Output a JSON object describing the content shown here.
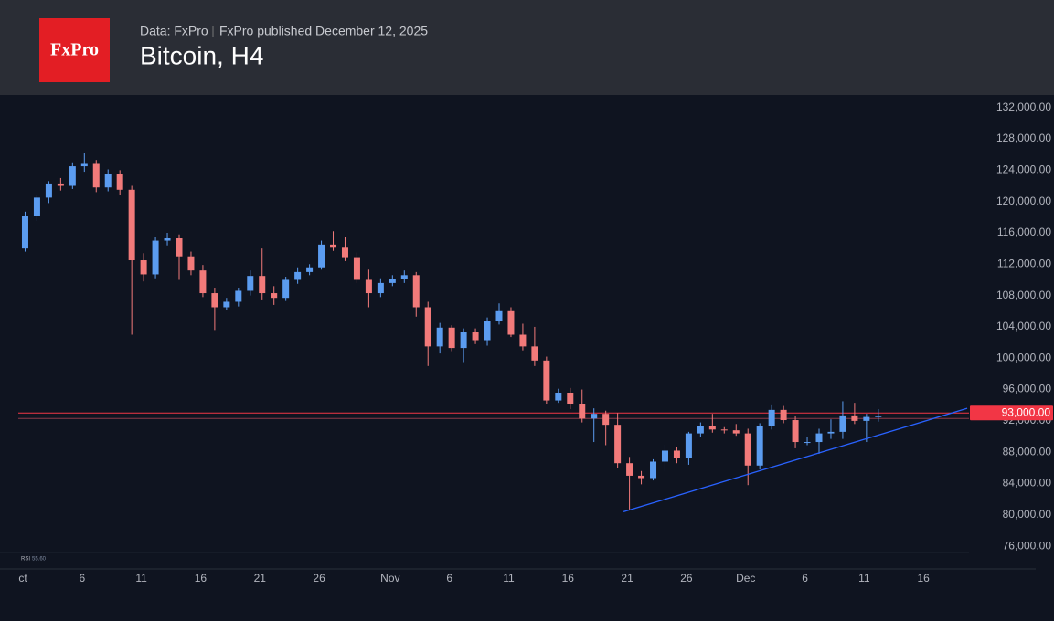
{
  "header": {
    "logo": "FxPro",
    "source": "Data: FxPro",
    "published": "FxPro published December 12, 2025",
    "title": "Bitcoin, H4"
  },
  "chart_data": {
    "type": "candlestick",
    "title": "Bitcoin, H4",
    "x": [
      "2025-10-01",
      "2025-10-02",
      "2025-10-03",
      "2025-10-04",
      "2025-10-05",
      "2025-10-06",
      "2025-10-07",
      "2025-10-08",
      "2025-10-09",
      "2025-10-10",
      "2025-10-11",
      "2025-10-12",
      "2025-10-13",
      "2025-10-14",
      "2025-10-15",
      "2025-10-16",
      "2025-10-17",
      "2025-10-18",
      "2025-10-19",
      "2025-10-20",
      "2025-10-21",
      "2025-10-22",
      "2025-10-23",
      "2025-10-24",
      "2025-10-25",
      "2025-10-26",
      "2025-10-27",
      "2025-10-28",
      "2025-10-29",
      "2025-10-30",
      "2025-10-31",
      "2025-11-01",
      "2025-11-02",
      "2025-11-03",
      "2025-11-04",
      "2025-11-05",
      "2025-11-06",
      "2025-11-07",
      "2025-11-08",
      "2025-11-09",
      "2025-11-10",
      "2025-11-11",
      "2025-11-12",
      "2025-11-13",
      "2025-11-14",
      "2025-11-15",
      "2025-11-16",
      "2025-11-17",
      "2025-11-18",
      "2025-11-19",
      "2025-11-20",
      "2025-11-21",
      "2025-11-22",
      "2025-11-23",
      "2025-11-24",
      "2025-11-25",
      "2025-11-26",
      "2025-11-27",
      "2025-11-28",
      "2025-11-29",
      "2025-11-30",
      "2025-12-01",
      "2025-12-02",
      "2025-12-03",
      "2025-12-04",
      "2025-12-05",
      "2025-12-06",
      "2025-12-07",
      "2025-12-08",
      "2025-12-09",
      "2025-12-10",
      "2025-12-11",
      "2025-12-12"
    ],
    "open": [
      114000,
      118200,
      120500,
      122300,
      122000,
      124500,
      124800,
      121800,
      123500,
      121500,
      112500,
      110700,
      115000,
      115300,
      113000,
      111200,
      108300,
      106500,
      107200,
      108600,
      110500,
      108300,
      107700,
      110000,
      111000,
      111600,
      114500,
      114100,
      112900,
      110000,
      108300,
      109600,
      110100,
      110600,
      106500,
      101500,
      103900,
      101300,
      103400,
      102300,
      104700,
      106000,
      103000,
      101500,
      99700,
      94600,
      95600,
      94200,
      92300,
      92900,
      91500,
      86600,
      85000,
      84700,
      86800,
      88200,
      87300,
      90400,
      91300,
      90900,
      90800,
      90400,
      86300,
      91300,
      93400,
      92100,
      89300,
      89300,
      90400,
      90600,
      92700,
      92000,
      92500
    ],
    "high": [
      118700,
      120800,
      122600,
      123000,
      125000,
      126200,
      125300,
      124100,
      124000,
      122000,
      113400,
      115500,
      116000,
      115800,
      113600,
      111900,
      109000,
      107700,
      109000,
      111200,
      114000,
      109200,
      110400,
      111600,
      112000,
      115000,
      116200,
      115500,
      113500,
      111300,
      110200,
      110600,
      111200,
      111000,
      107200,
      104500,
      104200,
      103800,
      103800,
      105200,
      107000,
      106500,
      104400,
      104000,
      100200,
      96100,
      96200,
      96000,
      93600,
      93300,
      93000,
      87400,
      85600,
      87100,
      89000,
      88700,
      90600,
      91800,
      92900,
      91200,
      91600,
      91000,
      91700,
      94100,
      93900,
      92600,
      89900,
      91000,
      92200,
      94500,
      94300,
      92900,
      93500
    ],
    "low": [
      113600,
      117500,
      119800,
      121400,
      121600,
      123800,
      121200,
      121300,
      120800,
      103000,
      109800,
      110200,
      114400,
      110000,
      110600,
      107800,
      103600,
      106200,
      106600,
      108000,
      107500,
      106800,
      107300,
      109500,
      110600,
      111300,
      113700,
      112400,
      109600,
      106500,
      107800,
      109200,
      109600,
      105300,
      99000,
      100600,
      100900,
      99500,
      101800,
      101600,
      104300,
      102700,
      101000,
      99000,
      94200,
      94300,
      93500,
      91800,
      89300,
      88900,
      86000,
      80600,
      83900,
      84400,
      85600,
      86600,
      86400,
      90000,
      90500,
      90400,
      90100,
      83800,
      85800,
      90900,
      91700,
      88500,
      88900,
      87800,
      89700,
      89700,
      91600,
      89300,
      91900
    ],
    "close": [
      118200,
      120500,
      122300,
      122000,
      124500,
      124800,
      121800,
      123500,
      121500,
      112500,
      110700,
      115000,
      115300,
      113000,
      111200,
      108300,
      106500,
      107200,
      108600,
      110500,
      108300,
      107700,
      110000,
      111000,
      111600,
      114500,
      114100,
      112900,
      110000,
      108300,
      109600,
      110100,
      110600,
      106500,
      101500,
      103900,
      101300,
      103400,
      102300,
      104700,
      106000,
      103000,
      101500,
      99700,
      94600,
      95600,
      94200,
      92300,
      92900,
      91500,
      86600,
      85000,
      84700,
      86800,
      88200,
      87300,
      90400,
      91300,
      90900,
      90800,
      90400,
      86300,
      91300,
      93400,
      92100,
      89300,
      89300,
      90400,
      90600,
      92700,
      92000,
      92500,
      92600
    ],
    "up_color": "#5b9cf0",
    "down_color": "#f27a7a",
    "xlim": [
      "2025-10-01",
      "2025-12-21"
    ],
    "xticks": [
      {
        "value": "2025-10-01",
        "label": "ct"
      },
      {
        "value": "2025-10-06",
        "label": "6"
      },
      {
        "value": "2025-10-11",
        "label": "11"
      },
      {
        "value": "2025-10-16",
        "label": "16"
      },
      {
        "value": "2025-10-21",
        "label": "21"
      },
      {
        "value": "2025-10-26",
        "label": "26"
      },
      {
        "value": "2025-11-01",
        "label": "Nov"
      },
      {
        "value": "2025-11-06",
        "label": "6"
      },
      {
        "value": "2025-11-11",
        "label": "11"
      },
      {
        "value": "2025-11-16",
        "label": "16"
      },
      {
        "value": "2025-11-21",
        "label": "21"
      },
      {
        "value": "2025-11-26",
        "label": "26"
      },
      {
        "value": "2025-12-01",
        "label": "Dec"
      },
      {
        "value": "2025-12-06",
        "label": "6"
      },
      {
        "value": "2025-12-11",
        "label": "11"
      },
      {
        "value": "2025-12-16",
        "label": "16"
      }
    ],
    "ylim": [
      75200,
      133600
    ],
    "yticks": [
      {
        "value": 132000,
        "label": "132,000.00"
      },
      {
        "value": 128000,
        "label": "128,000.00"
      },
      {
        "value": 124000,
        "label": "124,000.00"
      },
      {
        "value": 120000,
        "label": "120,000.00"
      },
      {
        "value": 116000,
        "label": "116,000.00"
      },
      {
        "value": 112000,
        "label": "112,000.00"
      },
      {
        "value": 108000,
        "label": "108,000.00"
      },
      {
        "value": 104000,
        "label": "104,000.00"
      },
      {
        "value": 100000,
        "label": "100,000.00"
      },
      {
        "value": 96000,
        "label": "96,000.00"
      },
      {
        "value": 92000,
        "label": "92,000.00"
      },
      {
        "value": 88000,
        "label": "88,000.00"
      },
      {
        "value": 84000,
        "label": "84,000.00"
      },
      {
        "value": 80000,
        "label": "80,000.00"
      },
      {
        "value": 76000,
        "label": "76,000.00"
      }
    ],
    "levels": [
      {
        "value": 93000,
        "label": "93,000.00",
        "color": "#f23645"
      },
      {
        "value": 92300,
        "color": "#8a3a48"
      }
    ],
    "trendline": {
      "x": [
        "2025-11-21",
        "2025-12-20"
      ],
      "y": [
        80400,
        93600
      ],
      "color": "#2962ff"
    },
    "indicator": {
      "name": "RSI",
      "value": "55.60"
    }
  }
}
